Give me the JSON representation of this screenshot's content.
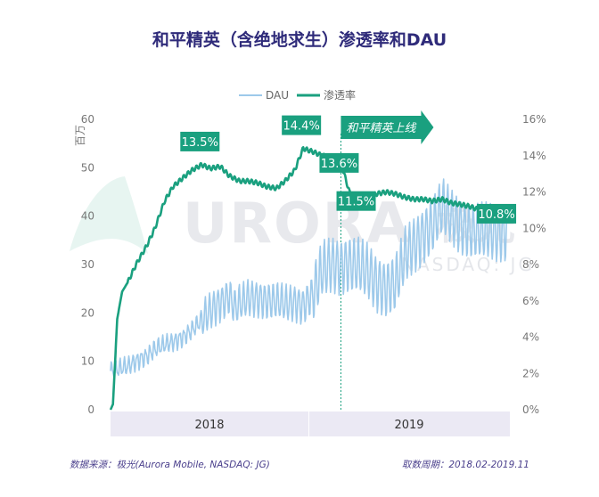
{
  "title": "和平精英（含绝地求生）渗透率和DAU",
  "footer": {
    "source": "数据来源：极光(Aurora Mobile, NASDAQ: JG)",
    "period": "取数周期：2018.02-2019.11"
  },
  "watermark": {
    "brand": "URORA",
    "cn": "极光",
    "ticker": "NASDAQ: JG"
  },
  "colors": {
    "dau": "#9dc9ea",
    "penetration": "#1aa07f",
    "callout": "#1aa07f",
    "title": "#2f2b7a",
    "year_band": "#ebe9f4"
  },
  "chart_data": {
    "type": "line",
    "title": "和平精英（含绝地求生）渗透率和DAU",
    "y_left": {
      "label": "百万",
      "ticks": [
        "0",
        "10",
        "20",
        "30",
        "40",
        "50",
        "60"
      ],
      "range": [
        0,
        60
      ]
    },
    "y_right": {
      "ticks": [
        "0%",
        "2%",
        "4%",
        "6%",
        "8%",
        "10%",
        "12%",
        "14%",
        "16%"
      ],
      "range": [
        0,
        16
      ]
    },
    "x": {
      "start": "2018-02",
      "end": "2019-11",
      "year_labels": [
        "2018",
        "2019"
      ]
    },
    "legend": {
      "position": "top-center"
    },
    "series": [
      {
        "name": "DAU",
        "axis": "left",
        "points": [
          [
            "2018-02-01",
            8.0
          ],
          [
            "2018-02-15",
            8.5
          ],
          [
            "2018-03-01",
            9.0
          ],
          [
            "2018-03-15",
            10.0
          ],
          [
            "2018-04-01",
            11.0
          ],
          [
            "2018-04-15",
            12.5
          ],
          [
            "2018-05-01",
            13.5
          ],
          [
            "2018-05-15",
            14.0
          ],
          [
            "2018-06-01",
            15.0
          ],
          [
            "2018-06-15",
            16.5
          ],
          [
            "2018-07-01",
            18.5
          ],
          [
            "2018-07-15",
            20.5
          ],
          [
            "2018-08-01",
            22.0
          ],
          [
            "2018-08-15",
            23.5
          ],
          [
            "2018-08-25",
            21.0
          ],
          [
            "2018-09-01",
            22.0
          ],
          [
            "2018-09-15",
            23.0
          ],
          [
            "2018-10-01",
            23.0
          ],
          [
            "2018-10-15",
            22.5
          ],
          [
            "2018-11-01",
            22.5
          ],
          [
            "2018-11-15",
            22.0
          ],
          [
            "2018-12-01",
            22.0
          ],
          [
            "2018-12-15",
            21.5
          ],
          [
            "2019-01-01",
            24.0
          ],
          [
            "2019-01-15",
            29.0
          ],
          [
            "2019-02-01",
            30.0
          ],
          [
            "2019-02-15",
            29.5
          ],
          [
            "2019-03-01",
            30.0
          ],
          [
            "2019-03-15",
            30.0
          ],
          [
            "2019-04-01",
            28.5
          ],
          [
            "2019-04-15",
            26.0
          ],
          [
            "2019-05-01",
            25.0
          ],
          [
            "2019-05-15",
            26.0
          ],
          [
            "2019-06-01",
            32.0
          ],
          [
            "2019-06-15",
            34.0
          ],
          [
            "2019-07-01",
            36.0
          ],
          [
            "2019-07-15",
            38.0
          ],
          [
            "2019-08-01",
            42.0
          ],
          [
            "2019-08-15",
            40.0
          ],
          [
            "2019-09-01",
            38.0
          ],
          [
            "2019-09-15",
            37.0
          ],
          [
            "2019-10-01",
            37.0
          ],
          [
            "2019-10-15",
            37.0
          ],
          [
            "2019-11-01",
            36.5
          ],
          [
            "2019-11-15",
            36.5
          ]
        ],
        "daily_swing": "weekly oscillation around the trend, up to about ±8 in 2018 H2 and ±10 in 2019"
      },
      {
        "name": "渗透率",
        "axis": "right",
        "points": [
          [
            "2018-02-01",
            0.0
          ],
          [
            "2018-02-05",
            0.3
          ],
          [
            "2018-02-12",
            5.0
          ],
          [
            "2018-02-20",
            6.5
          ],
          [
            "2018-03-01",
            7.0
          ],
          [
            "2018-03-15",
            8.0
          ],
          [
            "2018-04-01",
            9.0
          ],
          [
            "2018-04-15",
            10.0
          ],
          [
            "2018-05-01",
            11.5
          ],
          [
            "2018-05-15",
            12.3
          ],
          [
            "2018-06-01",
            12.8
          ],
          [
            "2018-06-15",
            13.2
          ],
          [
            "2018-07-01",
            13.5
          ],
          [
            "2018-07-15",
            13.3
          ],
          [
            "2018-08-01",
            13.4
          ],
          [
            "2018-08-15",
            12.9
          ],
          [
            "2018-09-01",
            12.6
          ],
          [
            "2018-09-15",
            12.6
          ],
          [
            "2018-10-01",
            12.5
          ],
          [
            "2018-10-15",
            12.3
          ],
          [
            "2018-11-01",
            12.2
          ],
          [
            "2018-11-15",
            12.6
          ],
          [
            "2018-12-01",
            13.2
          ],
          [
            "2018-12-15",
            14.4
          ],
          [
            "2019-01-01",
            14.2
          ],
          [
            "2019-01-15",
            14.0
          ],
          [
            "2019-02-01",
            13.9
          ],
          [
            "2019-02-15",
            13.6
          ],
          [
            "2019-03-01",
            12.0
          ],
          [
            "2019-03-15",
            11.5
          ],
          [
            "2019-04-01",
            11.7
          ],
          [
            "2019-04-15",
            11.9
          ],
          [
            "2019-05-01",
            12.0
          ],
          [
            "2019-05-15",
            11.9
          ],
          [
            "2019-06-01",
            11.7
          ],
          [
            "2019-06-15",
            11.6
          ],
          [
            "2019-07-01",
            11.6
          ],
          [
            "2019-07-15",
            11.5
          ],
          [
            "2019-08-01",
            11.6
          ],
          [
            "2019-08-15",
            11.4
          ],
          [
            "2019-09-01",
            11.3
          ],
          [
            "2019-09-15",
            11.2
          ],
          [
            "2019-10-01",
            11.0
          ],
          [
            "2019-10-15",
            10.9
          ],
          [
            "2019-11-01",
            10.8
          ]
        ]
      }
    ],
    "callouts": [
      {
        "text": "13.5%",
        "date": "2018-07-01",
        "value": 13.5
      },
      {
        "text": "14.4%",
        "date": "2018-12-15",
        "value": 14.4
      },
      {
        "text": "13.6%",
        "date": "2019-02-15",
        "value": 13.6
      },
      {
        "text": "11.5%",
        "date": "2019-03-15",
        "value": 11.5
      },
      {
        "text": "10.8%",
        "date": "2019-11-01",
        "value": 10.8
      }
    ],
    "event": {
      "text": "和平精英上线",
      "date": "2019-02-15"
    }
  }
}
